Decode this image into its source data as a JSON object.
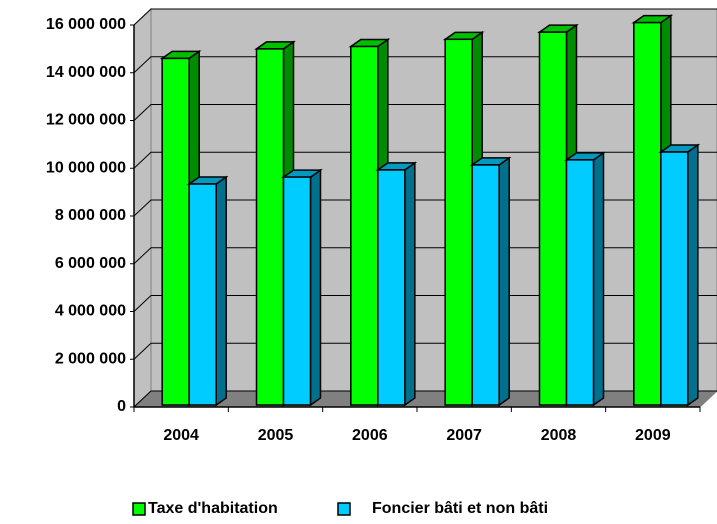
{
  "chart_data": {
    "type": "bar3d",
    "categories": [
      "2004",
      "2005",
      "2006",
      "2007",
      "2008",
      "2009"
    ],
    "series": [
      {
        "name": "Taxe d'habitation",
        "color": "#00ff00",
        "values": [
          14600000,
          15000000,
          15100000,
          15400000,
          15700000,
          16100000
        ]
      },
      {
        "name": "Foncier bâti et non bâti",
        "color": "#00ccff",
        "values": [
          9340000,
          9630000,
          9930000,
          10140000,
          10350000,
          10680000
        ]
      }
    ],
    "ylim": [
      0,
      16000000
    ],
    "yticks": [
      0,
      {
        "value": 2000000,
        "label": "2 000 000"
      },
      {
        "value": 4000000,
        "label": "4 000 000"
      },
      {
        "value": 6000000,
        "label": "6 000 000"
      },
      {
        "value": 8000000,
        "label": "8 000 000"
      },
      {
        "value": 10000000,
        "label": "10 000 000"
      },
      {
        "value": 12000000,
        "label": "12 000 000"
      },
      {
        "value": 14000000,
        "label": "14 000 000"
      },
      {
        "value": 16000000,
        "label": "16 000 000"
      }
    ],
    "grid": true,
    "legend": "bottom"
  }
}
